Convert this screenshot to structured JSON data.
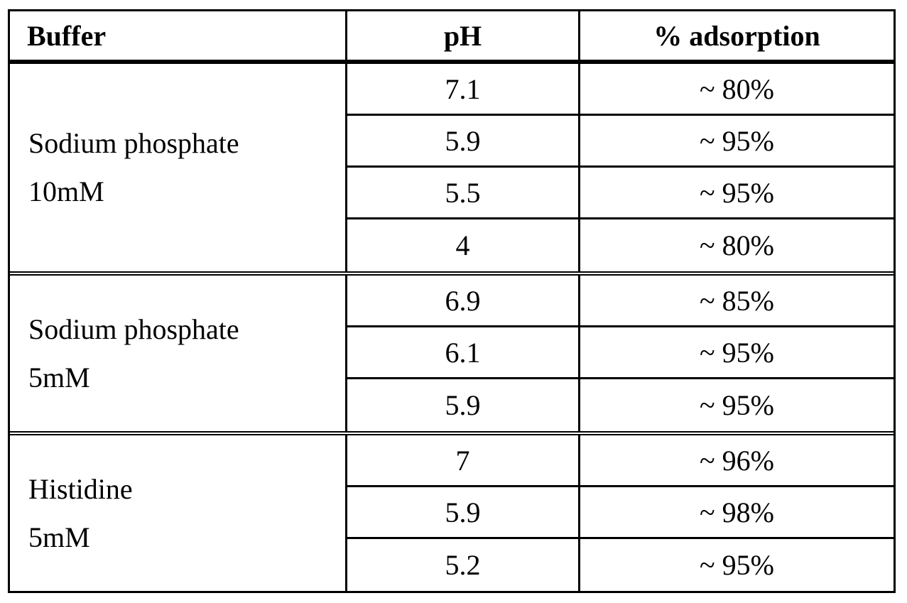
{
  "table": {
    "headers": {
      "buffer": "Buffer",
      "ph": "pH",
      "adsorption": "% adsorption"
    },
    "groups": [
      {
        "buffer_line1": "Sodium phosphate",
        "buffer_line2": "10mM",
        "rows": [
          {
            "ph": "7.1",
            "adsorption": "~ 80%"
          },
          {
            "ph": "5.9",
            "adsorption": "~ 95%"
          },
          {
            "ph": "5.5",
            "adsorption": "~ 95%"
          },
          {
            "ph": "4",
            "adsorption": "~ 80%"
          }
        ]
      },
      {
        "buffer_line1": "Sodium phosphate",
        "buffer_line2": "5mM",
        "rows": [
          {
            "ph": "6.9",
            "adsorption": "~ 85%"
          },
          {
            "ph": "6.1",
            "adsorption": "~ 95%"
          },
          {
            "ph": "5.9",
            "adsorption": "~ 95%"
          }
        ]
      },
      {
        "buffer_line1": "Histidine",
        "buffer_line2": "5mM",
        "rows": [
          {
            "ph": "7",
            "adsorption": "~ 96%"
          },
          {
            "ph": "5.9",
            "adsorption": "~ 98%"
          },
          {
            "ph": "5.2",
            "adsorption": "~ 95%"
          }
        ]
      }
    ]
  }
}
